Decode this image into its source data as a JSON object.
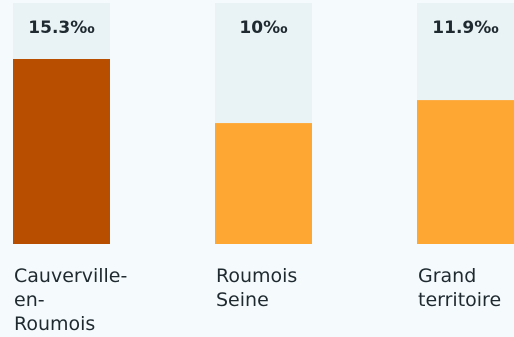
{
  "chart_data": {
    "type": "bar",
    "categories": [
      [
        "Cauverville-",
        "en-",
        "Roumois"
      ],
      [
        "Roumois",
        "Seine"
      ],
      [
        "Grand",
        "territoire"
      ]
    ],
    "values": [
      15.3,
      10,
      11.9
    ],
    "value_labels": [
      "15.3‰",
      "10‰",
      "11.9‰"
    ],
    "ylim": [
      0,
      15.3
    ],
    "bar_colors": [
      "#b84e00",
      "#ffa733",
      "#ffa733"
    ],
    "track_color": "#e9f2f4",
    "grid": false
  }
}
